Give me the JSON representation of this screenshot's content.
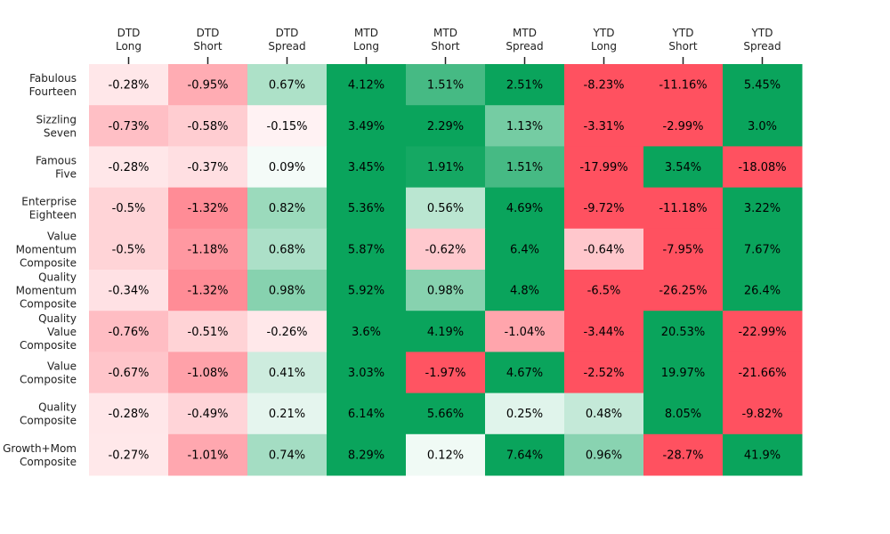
{
  "chart_data": {
    "type": "heatmap",
    "title": "",
    "columns": [
      [
        "DTD",
        "Long"
      ],
      [
        "DTD",
        "Short"
      ],
      [
        "DTD",
        "Spread"
      ],
      [
        "MTD",
        "Long"
      ],
      [
        "MTD",
        "Short"
      ],
      [
        "MTD",
        "Spread"
      ],
      [
        "YTD",
        "Long"
      ],
      [
        "YTD",
        "Short"
      ],
      [
        "YTD",
        "Spread"
      ]
    ],
    "rows": [
      [
        "Fabulous",
        "Fourteen"
      ],
      [
        "Sizzling",
        "Seven"
      ],
      [
        "Famous",
        "Five"
      ],
      [
        "Enterprise",
        "Eighteen"
      ],
      [
        "Value",
        "Momentum",
        "Composite"
      ],
      [
        "Quality",
        "Momentum",
        "Composite"
      ],
      [
        "Quality",
        "Value",
        "Composite"
      ],
      [
        "Value",
        "Composite"
      ],
      [
        "Quality",
        "Composite"
      ],
      [
        "Growth+Mom",
        "Composite"
      ]
    ],
    "values": [
      [
        -0.28,
        -0.95,
        0.67,
        4.12,
        1.51,
        2.51,
        -8.23,
        -11.16,
        5.45
      ],
      [
        -0.73,
        -0.58,
        -0.15,
        3.49,
        2.29,
        1.13,
        -3.31,
        -2.99,
        3.0
      ],
      [
        -0.28,
        -0.37,
        0.09,
        3.45,
        1.91,
        1.51,
        -17.99,
        3.54,
        -18.08
      ],
      [
        -0.5,
        -1.32,
        0.82,
        5.36,
        0.56,
        4.69,
        -9.72,
        -11.18,
        3.22
      ],
      [
        -0.5,
        -1.18,
        0.68,
        5.87,
        -0.62,
        6.4,
        -0.64,
        -7.95,
        7.67
      ],
      [
        -0.34,
        -1.32,
        0.98,
        5.92,
        0.98,
        4.8,
        -6.5,
        -26.25,
        26.4
      ],
      [
        -0.76,
        -0.51,
        -0.26,
        3.6,
        4.19,
        -1.04,
        -3.44,
        20.53,
        -22.99
      ],
      [
        -0.67,
        -1.08,
        0.41,
        3.03,
        -1.97,
        4.67,
        -2.52,
        19.97,
        -21.66
      ],
      [
        -0.28,
        -0.49,
        0.21,
        6.14,
        5.66,
        0.25,
        0.48,
        8.05,
        -9.82
      ],
      [
        -0.27,
        -1.01,
        0.74,
        8.29,
        0.12,
        7.64,
        0.96,
        -28.7,
        41.9
      ]
    ],
    "labels": [
      [
        "-0.28%",
        "-0.95%",
        "0.67%",
        "4.12%",
        "1.51%",
        "2.51%",
        "-8.23%",
        "-11.16%",
        "5.45%"
      ],
      [
        "-0.73%",
        "-0.58%",
        "-0.15%",
        "3.49%",
        "2.29%",
        "1.13%",
        "-3.31%",
        "-2.99%",
        "3.0%"
      ],
      [
        "-0.28%",
        "-0.37%",
        "0.09%",
        "3.45%",
        "1.91%",
        "1.51%",
        "-17.99%",
        "3.54%",
        "-18.08%"
      ],
      [
        "-0.5%",
        "-1.32%",
        "0.82%",
        "5.36%",
        "0.56%",
        "4.69%",
        "-9.72%",
        "-11.18%",
        "3.22%"
      ],
      [
        "-0.5%",
        "-1.18%",
        "0.68%",
        "5.87%",
        "-0.62%",
        "6.4%",
        "-0.64%",
        "-7.95%",
        "7.67%"
      ],
      [
        "-0.34%",
        "-1.32%",
        "0.98%",
        "5.92%",
        "0.98%",
        "4.8%",
        "-6.5%",
        "-26.25%",
        "26.4%"
      ],
      [
        "-0.76%",
        "-0.51%",
        "-0.26%",
        "3.6%",
        "4.19%",
        "-1.04%",
        "-3.44%",
        "20.53%",
        "-22.99%"
      ],
      [
        "-0.67%",
        "-1.08%",
        "0.41%",
        "3.03%",
        "-1.97%",
        "4.67%",
        "-2.52%",
        "19.97%",
        "-21.66%"
      ],
      [
        "-0.28%",
        "-0.49%",
        "0.21%",
        "6.14%",
        "5.66%",
        "0.25%",
        "0.48%",
        "8.05%",
        "-9.82%"
      ],
      [
        "-0.27%",
        "-1.01%",
        "0.74%",
        "8.29%",
        "0.12%",
        "7.64%",
        "0.96%",
        "-28.7%",
        "41.9%"
      ]
    ],
    "color_scale": {
      "negative": "#ff5160",
      "positive": "#0aa45c",
      "neutral": "#ffffff",
      "saturation_magnitude": 2
    },
    "colorbar": false,
    "grid": false
  }
}
